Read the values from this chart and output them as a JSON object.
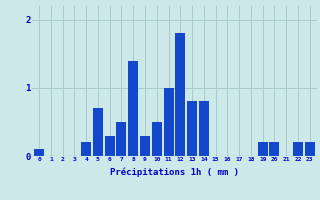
{
  "values": [
    0.1,
    0.0,
    0.0,
    0.0,
    0.2,
    0.7,
    0.3,
    0.5,
    1.4,
    0.3,
    0.5,
    1.0,
    1.8,
    0.8,
    0.8,
    0.0,
    0.0,
    0.0,
    0.0,
    0.2,
    0.2,
    0.0,
    0.2,
    0.2
  ],
  "bar_color": "#1448cc",
  "background_color": "#cce8e8",
  "grid_color": "#aacaca",
  "xlabel": "Précipitations 1h ( mm )",
  "xlabel_color": "#0000cc",
  "tick_color": "#0000cc",
  "ylim": [
    0,
    2.2
  ],
  "yticks": [
    0,
    1,
    2
  ],
  "xlim": [
    -0.6,
    23.6
  ],
  "fig_width": 3.2,
  "fig_height": 2.0,
  "dpi": 100
}
